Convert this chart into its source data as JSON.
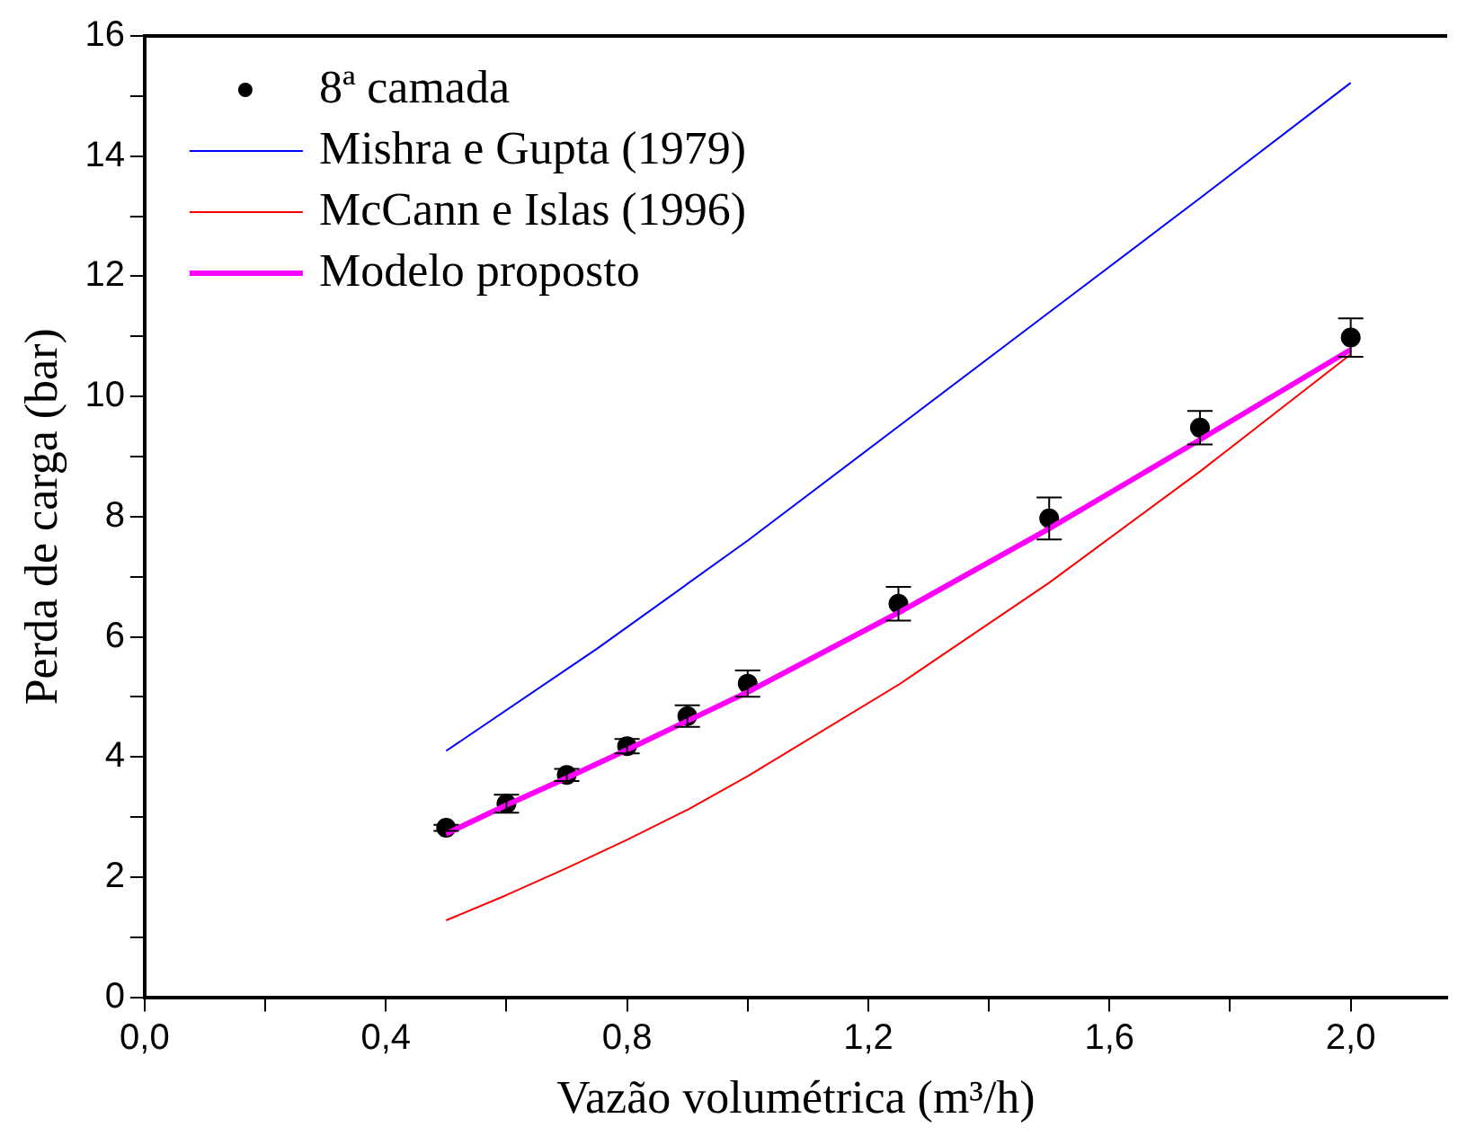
{
  "chart_data": {
    "type": "line",
    "xlabel": "Vazão volumétrica (m³/h)",
    "ylabel": "Perda de carga (bar)",
    "xlim": [
      0,
      2.16
    ],
    "ylim": [
      0,
      16
    ],
    "xticks": [
      {
        "value": 0,
        "label": "0,0"
      },
      {
        "value": 0.2,
        "label": null
      },
      {
        "value": 0.4,
        "label": "0,4"
      },
      {
        "value": 0.6,
        "label": null
      },
      {
        "value": 0.8,
        "label": "0,8"
      },
      {
        "value": 1.0,
        "label": null
      },
      {
        "value": 1.2,
        "label": "1,2"
      },
      {
        "value": 1.4,
        "label": null
      },
      {
        "value": 1.6,
        "label": "1,6"
      },
      {
        "value": 1.8,
        "label": null
      },
      {
        "value": 2.0,
        "label": "2,0"
      }
    ],
    "yticks": [
      0,
      {
        "value": 1,
        "label": null
      },
      2,
      {
        "value": 3,
        "label": null
      },
      4,
      {
        "value": 5,
        "label": null
      },
      6,
      {
        "value": 7,
        "label": null
      },
      8,
      {
        "value": 9,
        "label": null
      },
      10,
      {
        "value": 11,
        "label": null
      },
      12,
      {
        "value": 13,
        "label": null
      },
      14,
      {
        "value": 15,
        "label": null
      },
      16
    ],
    "grid": false,
    "legend": "top left",
    "series": [
      {
        "name": "8ª camada",
        "type": "scatter",
        "marker": "circle",
        "color": "#000000",
        "x": [
          0.5,
          0.6,
          0.7,
          0.8,
          0.9,
          1.0,
          1.25,
          1.5,
          1.75,
          2.0
        ],
        "values": [
          2.82,
          3.22,
          3.7,
          4.18,
          4.68,
          5.22,
          6.55,
          7.97,
          9.48,
          10.98
        ],
        "errors": [
          0.05,
          0.15,
          0.1,
          0.12,
          0.18,
          0.22,
          0.28,
          0.35,
          0.28,
          0.32
        ]
      },
      {
        "name": "Mishra e Gupta (1979)",
        "color": "#0000ff",
        "x": [
          0.5,
          0.75,
          1.0,
          1.25,
          1.5,
          1.75,
          2.0
        ],
        "values": [
          4.1,
          5.8,
          7.6,
          9.5,
          11.4,
          13.3,
          15.22
        ]
      },
      {
        "name": "McCann e Islas (1996)",
        "color": "#ff0000",
        "x": [
          0.5,
          0.6,
          0.7,
          0.8,
          0.9,
          1.0,
          1.25,
          1.5,
          1.75,
          2.0
        ],
        "values": [
          1.28,
          1.7,
          2.15,
          2.62,
          3.12,
          3.68,
          5.2,
          6.9,
          8.75,
          10.7
        ]
      },
      {
        "name": "Modelo proposto",
        "color": "#ff00ff",
        "x": [
          0.5,
          0.6,
          0.7,
          0.8,
          0.9,
          1.0,
          1.25,
          1.5,
          1.75,
          2.0
        ],
        "values": [
          2.72,
          3.2,
          3.65,
          4.12,
          4.6,
          5.08,
          6.4,
          7.8,
          9.28,
          10.78
        ]
      }
    ]
  }
}
